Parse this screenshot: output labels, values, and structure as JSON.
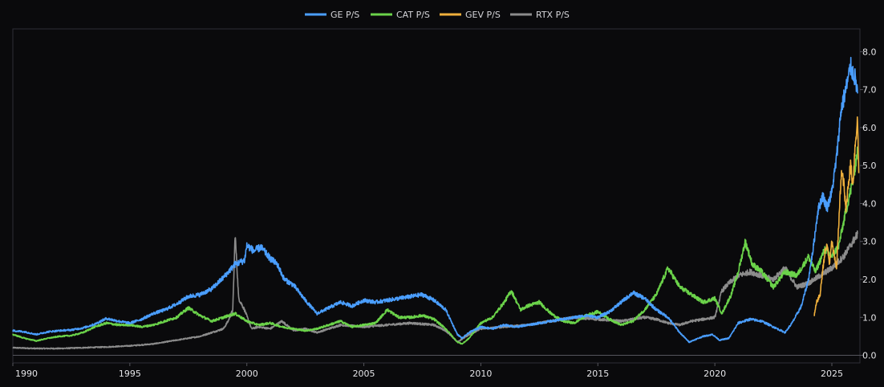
{
  "chart_data": {
    "type": "line",
    "title": "",
    "xlabel": "",
    "ylabel": "",
    "xlim": [
      1990,
      2026.2
    ],
    "ylim": [
      -0.2,
      8.6
    ],
    "x_ticks": [
      1990,
      1995,
      2000,
      2005,
      2010,
      2015,
      2020,
      2025
    ],
    "x_tick_labels": [
      "1990",
      "1995",
      "2000",
      "2005",
      "2010",
      "2015",
      "2020",
      "2025"
    ],
    "y_ticks": [
      0,
      1,
      2,
      3,
      4,
      5,
      6,
      7,
      8
    ],
    "y_tick_labels": [
      "0.0",
      "1.0",
      "2.0",
      "3.0",
      "4.0",
      "5.0",
      "6.0",
      "7.0",
      "8.0"
    ],
    "y_axis_side": "right",
    "zero_line": true,
    "grid": false,
    "legend_position": "top-center",
    "background": "#0a0a0c",
    "series": [
      {
        "name": "GE P/S",
        "color": "#4a9eff",
        "points": [
          [
            1990.0,
            0.65
          ],
          [
            1990.5,
            0.62
          ],
          [
            1991.0,
            0.55
          ],
          [
            1991.5,
            0.62
          ],
          [
            1992.0,
            0.65
          ],
          [
            1992.5,
            0.67
          ],
          [
            1993.0,
            0.72
          ],
          [
            1993.5,
            0.82
          ],
          [
            1994.0,
            0.97
          ],
          [
            1994.5,
            0.9
          ],
          [
            1995.0,
            0.85
          ],
          [
            1995.5,
            0.95
          ],
          [
            1996.0,
            1.1
          ],
          [
            1996.5,
            1.2
          ],
          [
            1997.0,
            1.35
          ],
          [
            1997.5,
            1.55
          ],
          [
            1998.0,
            1.6
          ],
          [
            1998.5,
            1.75
          ],
          [
            1999.0,
            2.05
          ],
          [
            1999.5,
            2.4
          ],
          [
            1999.9,
            2.5
          ],
          [
            2000.0,
            2.9
          ],
          [
            2000.3,
            2.75
          ],
          [
            2000.6,
            2.85
          ],
          [
            2001.0,
            2.55
          ],
          [
            2001.3,
            2.4
          ],
          [
            2001.6,
            2.0
          ],
          [
            2002.0,
            1.85
          ],
          [
            2002.5,
            1.45
          ],
          [
            2003.0,
            1.1
          ],
          [
            2003.5,
            1.25
          ],
          [
            2004.0,
            1.4
          ],
          [
            2004.5,
            1.3
          ],
          [
            2005.0,
            1.45
          ],
          [
            2005.5,
            1.4
          ],
          [
            2006.0,
            1.45
          ],
          [
            2006.5,
            1.5
          ],
          [
            2007.0,
            1.55
          ],
          [
            2007.5,
            1.6
          ],
          [
            2008.0,
            1.45
          ],
          [
            2008.5,
            1.2
          ],
          [
            2009.0,
            0.55
          ],
          [
            2009.2,
            0.45
          ],
          [
            2009.5,
            0.6
          ],
          [
            2010.0,
            0.75
          ],
          [
            2010.5,
            0.7
          ],
          [
            2011.0,
            0.8
          ],
          [
            2011.5,
            0.75
          ],
          [
            2012.0,
            0.8
          ],
          [
            2012.5,
            0.85
          ],
          [
            2013.0,
            0.9
          ],
          [
            2013.5,
            0.95
          ],
          [
            2014.0,
            1.0
          ],
          [
            2014.5,
            1.05
          ],
          [
            2015.0,
            1.0
          ],
          [
            2015.5,
            1.15
          ],
          [
            2016.0,
            1.4
          ],
          [
            2016.5,
            1.65
          ],
          [
            2017.0,
            1.5
          ],
          [
            2017.5,
            1.2
          ],
          [
            2018.0,
            1.0
          ],
          [
            2018.5,
            0.6
          ],
          [
            2018.9,
            0.35
          ],
          [
            2019.5,
            0.5
          ],
          [
            2019.9,
            0.55
          ],
          [
            2020.2,
            0.4
          ],
          [
            2020.6,
            0.45
          ],
          [
            2021.0,
            0.85
          ],
          [
            2021.5,
            0.95
          ],
          [
            2022.0,
            0.9
          ],
          [
            2022.5,
            0.75
          ],
          [
            2023.0,
            0.6
          ],
          [
            2023.3,
            0.85
          ],
          [
            2023.7,
            1.3
          ],
          [
            2024.0,
            2.0
          ],
          [
            2024.2,
            2.8
          ],
          [
            2024.4,
            3.8
          ],
          [
            2024.6,
            4.2
          ],
          [
            2024.8,
            3.9
          ],
          [
            2025.0,
            4.3
          ],
          [
            2025.2,
            5.2
          ],
          [
            2025.4,
            6.5
          ],
          [
            2025.6,
            7.0
          ],
          [
            2025.8,
            7.6
          ],
          [
            2026.0,
            7.3
          ],
          [
            2026.1,
            6.9
          ]
        ]
      },
      {
        "name": "CAT P/S",
        "color": "#6bd34a",
        "points": [
          [
            1990.0,
            0.55
          ],
          [
            1990.5,
            0.45
          ],
          [
            1991.0,
            0.38
          ],
          [
            1991.5,
            0.45
          ],
          [
            1992.0,
            0.5
          ],
          [
            1992.5,
            0.52
          ],
          [
            1993.0,
            0.6
          ],
          [
            1993.5,
            0.75
          ],
          [
            1994.0,
            0.85
          ],
          [
            1994.5,
            0.8
          ],
          [
            1995.0,
            0.8
          ],
          [
            1995.5,
            0.75
          ],
          [
            1996.0,
            0.8
          ],
          [
            1996.5,
            0.9
          ],
          [
            1997.0,
            1.0
          ],
          [
            1997.5,
            1.25
          ],
          [
            1998.0,
            1.05
          ],
          [
            1998.5,
            0.9
          ],
          [
            1999.0,
            1.0
          ],
          [
            1999.5,
            1.1
          ],
          [
            2000.0,
            0.9
          ],
          [
            2000.5,
            0.8
          ],
          [
            2001.0,
            0.85
          ],
          [
            2001.5,
            0.75
          ],
          [
            2002.0,
            0.7
          ],
          [
            2002.5,
            0.65
          ],
          [
            2003.0,
            0.7
          ],
          [
            2003.5,
            0.8
          ],
          [
            2004.0,
            0.9
          ],
          [
            2004.5,
            0.75
          ],
          [
            2005.0,
            0.8
          ],
          [
            2005.5,
            0.85
          ],
          [
            2006.0,
            1.2
          ],
          [
            2006.5,
            1.0
          ],
          [
            2007.0,
            1.0
          ],
          [
            2007.5,
            1.05
          ],
          [
            2008.0,
            0.95
          ],
          [
            2008.5,
            0.7
          ],
          [
            2009.0,
            0.35
          ],
          [
            2009.2,
            0.3
          ],
          [
            2009.5,
            0.45
          ],
          [
            2010.0,
            0.85
          ],
          [
            2010.5,
            1.0
          ],
          [
            2011.0,
            1.4
          ],
          [
            2011.3,
            1.7
          ],
          [
            2011.7,
            1.2
          ],
          [
            2012.0,
            1.3
          ],
          [
            2012.5,
            1.4
          ],
          [
            2013.0,
            1.1
          ],
          [
            2013.5,
            0.9
          ],
          [
            2014.0,
            0.85
          ],
          [
            2014.5,
            1.05
          ],
          [
            2015.0,
            1.15
          ],
          [
            2015.5,
            0.95
          ],
          [
            2016.0,
            0.8
          ],
          [
            2016.5,
            0.9
          ],
          [
            2017.0,
            1.2
          ],
          [
            2017.5,
            1.6
          ],
          [
            2018.0,
            2.3
          ],
          [
            2018.5,
            1.8
          ],
          [
            2019.0,
            1.6
          ],
          [
            2019.5,
            1.4
          ],
          [
            2020.0,
            1.5
          ],
          [
            2020.3,
            1.1
          ],
          [
            2020.7,
            1.6
          ],
          [
            2021.0,
            2.2
          ],
          [
            2021.3,
            3.0
          ],
          [
            2021.6,
            2.4
          ],
          [
            2022.0,
            2.2
          ],
          [
            2022.5,
            1.8
          ],
          [
            2023.0,
            2.2
          ],
          [
            2023.5,
            2.1
          ],
          [
            2024.0,
            2.6
          ],
          [
            2024.3,
            2.2
          ],
          [
            2024.7,
            2.8
          ],
          [
            2025.0,
            2.6
          ],
          [
            2025.3,
            2.9
          ],
          [
            2025.6,
            3.8
          ],
          [
            2025.9,
            4.6
          ],
          [
            2026.1,
            5.4
          ]
        ]
      },
      {
        "name": "GEV P/S",
        "color": "#f0b03c",
        "points": [
          [
            2024.25,
            1.05
          ],
          [
            2024.35,
            1.4
          ],
          [
            2024.5,
            1.6
          ],
          [
            2024.6,
            2.2
          ],
          [
            2024.7,
            2.7
          ],
          [
            2024.8,
            2.9
          ],
          [
            2024.9,
            2.4
          ],
          [
            2025.0,
            3.0
          ],
          [
            2025.1,
            2.6
          ],
          [
            2025.2,
            2.3
          ],
          [
            2025.3,
            3.5
          ],
          [
            2025.4,
            4.8
          ],
          [
            2025.5,
            4.6
          ],
          [
            2025.6,
            3.8
          ],
          [
            2025.7,
            4.5
          ],
          [
            2025.8,
            5.0
          ],
          [
            2025.9,
            4.5
          ],
          [
            2026.0,
            5.6
          ],
          [
            2026.1,
            6.2
          ],
          [
            2026.15,
            4.8
          ]
        ]
      },
      {
        "name": "RTX P/S",
        "color": "#8c8c8c",
        "points": [
          [
            1990.0,
            0.2
          ],
          [
            1991.0,
            0.18
          ],
          [
            1992.0,
            0.18
          ],
          [
            1993.0,
            0.2
          ],
          [
            1994.0,
            0.22
          ],
          [
            1995.0,
            0.25
          ],
          [
            1996.0,
            0.3
          ],
          [
            1997.0,
            0.4
          ],
          [
            1998.0,
            0.5
          ],
          [
            1999.0,
            0.7
          ],
          [
            1999.2,
            0.9
          ],
          [
            1999.4,
            1.2
          ],
          [
            1999.5,
            3.2
          ],
          [
            1999.65,
            1.5
          ],
          [
            1999.9,
            1.2
          ],
          [
            2000.2,
            0.7
          ],
          [
            2000.5,
            0.75
          ],
          [
            2001.0,
            0.7
          ],
          [
            2001.5,
            0.9
          ],
          [
            2002.0,
            0.65
          ],
          [
            2002.5,
            0.7
          ],
          [
            2003.0,
            0.6
          ],
          [
            2003.5,
            0.7
          ],
          [
            2004.0,
            0.8
          ],
          [
            2005.0,
            0.75
          ],
          [
            2006.0,
            0.8
          ],
          [
            2007.0,
            0.85
          ],
          [
            2008.0,
            0.8
          ],
          [
            2008.5,
            0.65
          ],
          [
            2009.0,
            0.35
          ],
          [
            2009.5,
            0.55
          ],
          [
            2010.0,
            0.7
          ],
          [
            2011.0,
            0.75
          ],
          [
            2012.0,
            0.8
          ],
          [
            2013.0,
            0.9
          ],
          [
            2014.0,
            1.0
          ],
          [
            2015.0,
            0.95
          ],
          [
            2016.0,
            0.9
          ],
          [
            2017.0,
            1.0
          ],
          [
            2017.5,
            0.95
          ],
          [
            2018.0,
            0.85
          ],
          [
            2018.5,
            0.8
          ],
          [
            2019.0,
            0.9
          ],
          [
            2019.5,
            0.95
          ],
          [
            2020.0,
            1.0
          ],
          [
            2020.3,
            1.7
          ],
          [
            2020.6,
            1.9
          ],
          [
            2021.0,
            2.1
          ],
          [
            2021.5,
            2.2
          ],
          [
            2022.0,
            2.1
          ],
          [
            2022.5,
            2.0
          ],
          [
            2023.0,
            2.3
          ],
          [
            2023.5,
            1.8
          ],
          [
            2024.0,
            1.9
          ],
          [
            2024.5,
            2.1
          ],
          [
            2025.0,
            2.3
          ],
          [
            2025.5,
            2.6
          ],
          [
            2025.8,
            2.9
          ],
          [
            2026.1,
            3.2
          ]
        ]
      }
    ]
  }
}
